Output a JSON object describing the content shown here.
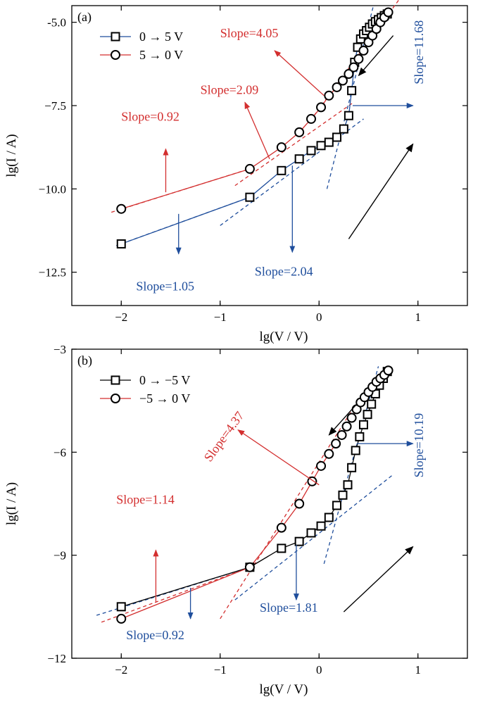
{
  "chart_data": [
    {
      "type": "scatter",
      "panel_label": "(a)",
      "xlabel": "lg(V / V)",
      "ylabel": "lg(I / A)",
      "xlim": [
        -2.5,
        1.5
      ],
      "ylim": [
        -13.5,
        -4.5
      ],
      "xticks": [
        -2,
        -1,
        0,
        1
      ],
      "xtick_labels": [
        "−2",
        "−1",
        "0",
        "1"
      ],
      "yticks": [
        -5.0,
        -7.5,
        -10.0,
        -12.5
      ],
      "ytick_labels": [
        "-5.0",
        "−7.5",
        "−10.0",
        "−12.5"
      ],
      "legend_placement": "top-left",
      "colors": {
        "axis": "#000000",
        "red": "#d32f2f",
        "blue": "#1f4e9c"
      },
      "series": [
        {
          "name": "0 → 5 V",
          "marker": "square",
          "line_color": "#1f4e9c",
          "x": [
            -2.0,
            -0.7,
            -0.38,
            -0.2,
            -0.08,
            0.02,
            0.1,
            0.18,
            0.25,
            0.3,
            0.33,
            0.36,
            0.39,
            0.42,
            0.45,
            0.48,
            0.51,
            0.54,
            0.57,
            0.6,
            0.63,
            0.66,
            0.69
          ],
          "y": [
            -11.65,
            -10.25,
            -9.45,
            -9.1,
            -8.85,
            -8.7,
            -8.6,
            -8.45,
            -8.2,
            -7.8,
            -7.05,
            -6.2,
            -5.75,
            -5.5,
            -5.35,
            -5.25,
            -5.15,
            -5.05,
            -4.98,
            -4.92,
            -4.86,
            -4.8,
            -4.75
          ]
        },
        {
          "name": "5 → 0 V",
          "marker": "circle",
          "line_color": "#d32f2f",
          "x": [
            -2.0,
            -0.7,
            -0.38,
            -0.2,
            -0.08,
            0.02,
            0.1,
            0.18,
            0.24,
            0.3,
            0.35,
            0.4,
            0.45,
            0.5,
            0.54,
            0.58,
            0.62,
            0.66,
            0.7
          ],
          "y": [
            -10.6,
            -9.4,
            -8.75,
            -8.3,
            -7.9,
            -7.55,
            -7.2,
            -6.95,
            -6.75,
            -6.55,
            -6.35,
            -6.1,
            -5.85,
            -5.6,
            -5.4,
            -5.2,
            -5.0,
            -4.85,
            -4.7
          ]
        }
      ],
      "fit_lines": [
        {
          "label": "Slope=0.92",
          "color": "#d32f2f",
          "x": [
            -2.1,
            -0.65
          ],
          "y": [
            -10.7,
            -9.35
          ]
        },
        {
          "label": "Slope=2.09",
          "color": "#d32f2f",
          "x": [
            -0.85,
            0.35
          ],
          "y": [
            -9.9,
            -7.4
          ]
        },
        {
          "label": "Slope=4.05",
          "color": "#d32f2f",
          "x": [
            -0.05,
            0.9
          ],
          "y": [
            -7.8,
            -3.95
          ]
        },
        {
          "label": "Slope=1.05",
          "color": "#1f4e9c",
          "x": [
            -2.05,
            -0.7
          ],
          "y": [
            -11.7,
            -10.25
          ]
        },
        {
          "label": "Slope=2.04",
          "color": "#1f4e9c",
          "x": [
            -1.0,
            0.45
          ],
          "y": [
            -11.1,
            -7.9
          ]
        },
        {
          "label": "Slope=11.68",
          "color": "#1f4e9c",
          "x": [
            0.08,
            0.55
          ],
          "y": [
            -10.0,
            -4.5
          ]
        }
      ],
      "annotations": [
        {
          "text": "Slope=4.05",
          "color": "#d32f2f",
          "tx": -1.0,
          "ty": -5.45,
          "rotation": 0,
          "ax0": 0.05,
          "ay0": -7.2,
          "ax1": -0.45,
          "ay1": -5.85
        },
        {
          "text": "Slope=2.09",
          "color": "#d32f2f",
          "tx": -1.2,
          "ty": -7.15,
          "rotation": 0,
          "ax0": -0.5,
          "ay0": -9.1,
          "ax1": -0.75,
          "ay1": -7.4
        },
        {
          "text": "Slope=0.92",
          "color": "#d32f2f",
          "tx": -2.0,
          "ty": -7.95,
          "rotation": 0,
          "ax0": -1.55,
          "ay0": -10.1,
          "ax1": -1.55,
          "ay1": -8.8
        },
        {
          "text": "Slope=1.05",
          "color": "#1f4e9c",
          "tx": -1.85,
          "ty": -13.05,
          "rotation": 0,
          "ax0": -1.42,
          "ay0": -10.75,
          "ax1": -1.42,
          "ay1": -11.95
        },
        {
          "text": "Slope=2.04",
          "color": "#1f4e9c",
          "tx": -0.65,
          "ty": -12.6,
          "rotation": 0,
          "ax0": -0.27,
          "ay0": -9.3,
          "ax1": -0.27,
          "ay1": -11.9
        },
        {
          "text": "Slope=11.68",
          "color": "#1f4e9c",
          "tx": 1.05,
          "ty": -5.9,
          "rotation": -90,
          "ax0": 0.34,
          "ay0": -7.5,
          "ax1": 0.95,
          "ay1": -7.5
        }
      ],
      "direction_arrows": [
        {
          "x0": 0.75,
          "y0": -5.4,
          "x1": 0.4,
          "y1": -6.6
        },
        {
          "x0": 0.3,
          "y0": -11.5,
          "x1": 0.95,
          "y1": -8.65
        }
      ]
    },
    {
      "type": "scatter",
      "panel_label": "(b)",
      "xlabel": "lg(V / V)",
      "ylabel": "lg(I / A)",
      "xlim": [
        -2.5,
        1.5
      ],
      "ylim": [
        -12,
        -3
      ],
      "xticks": [
        -2,
        -1,
        0,
        1
      ],
      "xtick_labels": [
        "−2",
        "−1",
        "0",
        "1"
      ],
      "yticks": [
        -3,
        -6,
        -9,
        -12
      ],
      "ytick_labels": [
        "−3",
        "−6",
        "−9",
        "−12"
      ],
      "legend_placement": "top-left",
      "colors": {
        "axis": "#000000",
        "red": "#d32f2f",
        "blue": "#1f4e9c"
      },
      "series": [
        {
          "name": "0 → −5 V",
          "marker": "square",
          "line_color": "#000000",
          "x": [
            -2.0,
            -0.7,
            -0.38,
            -0.2,
            -0.08,
            0.02,
            0.1,
            0.18,
            0.24,
            0.29,
            0.33,
            0.37,
            0.41,
            0.45,
            0.49,
            0.53,
            0.57,
            0.61,
            0.65,
            0.69
          ],
          "y": [
            -10.5,
            -9.35,
            -8.8,
            -8.6,
            -8.35,
            -8.15,
            -7.9,
            -7.55,
            -7.25,
            -6.95,
            -6.45,
            -5.95,
            -5.55,
            -5.2,
            -4.9,
            -4.6,
            -4.3,
            -4.05,
            -3.85,
            -3.65
          ]
        },
        {
          "name": "−5 → 0 V",
          "marker": "circle",
          "line_color": "#d32f2f",
          "x": [
            -2.0,
            -0.7,
            -0.38,
            -0.2,
            -0.07,
            0.02,
            0.1,
            0.17,
            0.23,
            0.28,
            0.33,
            0.38,
            0.42,
            0.46,
            0.5,
            0.54,
            0.58,
            0.62,
            0.66,
            0.7
          ],
          "y": [
            -10.85,
            -9.35,
            -8.2,
            -7.5,
            -6.85,
            -6.4,
            -6.05,
            -5.75,
            -5.5,
            -5.25,
            -5.0,
            -4.75,
            -4.55,
            -4.4,
            -4.25,
            -4.1,
            -3.95,
            -3.85,
            -3.75,
            -3.62
          ]
        }
      ],
      "fit_lines": [
        {
          "label": "Slope=1.14",
          "color": "#d32f2f",
          "x": [
            -2.2,
            -0.65
          ],
          "y": [
            -10.95,
            -9.3
          ]
        },
        {
          "label": "Slope=0.92",
          "color": "#1f4e9c",
          "x": [
            -2.25,
            -0.7
          ],
          "y": [
            -10.75,
            -9.35
          ]
        },
        {
          "label": "Slope=4.37",
          "color": "#d32f2f",
          "x": [
            -1.0,
            0.35
          ],
          "y": [
            -10.85,
            -4.7
          ]
        },
        {
          "label": "Slope=1.81",
          "color": "#1f4e9c",
          "x": [
            -0.85,
            0.75
          ],
          "y": [
            -10.3,
            -6.65
          ]
        },
        {
          "label": "Slope=10.19",
          "color": "#1f4e9c",
          "x": [
            0.05,
            0.6
          ],
          "y": [
            -9.25,
            -3.5
          ]
        }
      ],
      "annotations": [
        {
          "text": "Slope=4.37",
          "color": "#d32f2f",
          "tx": -1.1,
          "ty": -6.3,
          "rotation": -54,
          "ax0": 0.0,
          "ay0": -6.95,
          "ax1": -0.82,
          "ay1": -5.35
        },
        {
          "text": "Slope=1.14",
          "color": "#d32f2f",
          "tx": -2.05,
          "ty": -7.5,
          "rotation": 0,
          "ax0": -1.65,
          "ay0": -10.35,
          "ax1": -1.65,
          "ay1": -8.85
        },
        {
          "text": "Slope=0.92",
          "color": "#1f4e9c",
          "tx": -1.95,
          "ty": -11.45,
          "rotation": 0,
          "ax0": -1.3,
          "ay0": -9.95,
          "ax1": -1.3,
          "ay1": -10.85
        },
        {
          "text": "Slope=1.81",
          "color": "#1f4e9c",
          "tx": -0.6,
          "ty": -10.65,
          "rotation": 0,
          "ax0": -0.23,
          "ay0": -8.7,
          "ax1": -0.23,
          "ay1": -10.3
        },
        {
          "text": "Slope=10.19",
          "color": "#1f4e9c",
          "tx": 1.05,
          "ty": -5.8,
          "rotation": -90,
          "ax0": 0.38,
          "ay0": -5.75,
          "ax1": 0.95,
          "ay1": -5.75
        }
      ],
      "direction_arrows": [
        {
          "x0": 0.38,
          "y0": -4.6,
          "x1": 0.1,
          "y1": -5.5
        },
        {
          "x0": 0.25,
          "y0": -10.65,
          "x1": 0.95,
          "y1": -8.75
        }
      ]
    }
  ]
}
